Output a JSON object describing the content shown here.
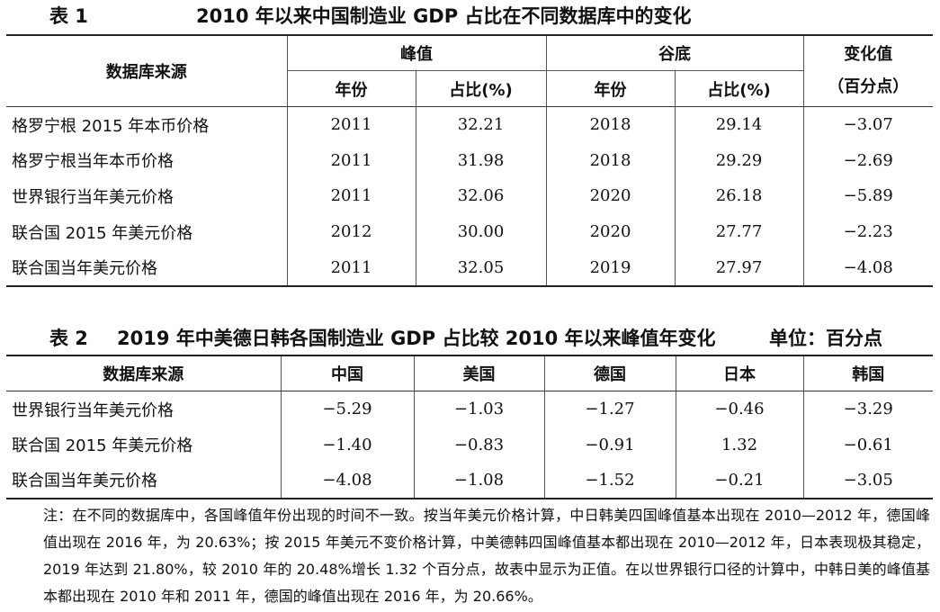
{
  "table1": {
    "num": "表 1",
    "title": "2010 年以来中国制造业 GDP 占比在不同数据库中的变化",
    "headers": {
      "source": "数据库来源",
      "peak": "峰值",
      "trough": "谷底",
      "change_line1": "变化值",
      "change_line2": "（百分点）",
      "year": "年份",
      "share": "占比(%)"
    },
    "rows": [
      {
        "source": "格罗宁根 2015 年本币价格",
        "peak_year": "2011",
        "peak_share": "32.21",
        "trough_year": "2018",
        "trough_share": "29.14",
        "change": "−3.07"
      },
      {
        "source": "格罗宁根当年本币价格",
        "peak_year": "2011",
        "peak_share": "31.98",
        "trough_year": "2018",
        "trough_share": "29.29",
        "change": "−2.69"
      },
      {
        "source": "世界银行当年美元价格",
        "peak_year": "2011",
        "peak_share": "32.06",
        "trough_year": "2020",
        "trough_share": "26.18",
        "change": "−5.89"
      },
      {
        "source": "联合国 2015 年美元价格",
        "peak_year": "2012",
        "peak_share": "30.00",
        "trough_year": "2020",
        "trough_share": "27.77",
        "change": "−2.23"
      },
      {
        "source": "联合国当年美元价格",
        "peak_year": "2011",
        "peak_share": "32.05",
        "trough_year": "2019",
        "trough_share": "27.97",
        "change": "−4.08"
      }
    ]
  },
  "table2": {
    "num": "表 2",
    "title": "2019 年中美德日韩各国制造业 GDP 占比较 2010 年以来峰值年变化",
    "unit": "单位：百分点",
    "headers": [
      "数据库来源",
      "中国",
      "美国",
      "德国",
      "日本",
      "韩国"
    ],
    "rows": [
      {
        "source": "世界银行当年美元价格",
        "values": [
          "−5.29",
          "−1.03",
          "−1.27",
          "−0.46",
          "−3.29"
        ]
      },
      {
        "source": "联合国 2015 年美元价格",
        "values": [
          "−1.40",
          "−0.83",
          "−0.91",
          "1.32",
          "−0.61"
        ]
      },
      {
        "source": "联合国当年美元价格",
        "values": [
          "−4.08",
          "−1.08",
          "−1.52",
          "−0.21",
          "−3.05"
        ]
      }
    ]
  },
  "note": "注：在不同的数据库中，各国峰值年份出现的时间不一致。按当年美元价格计算，中日韩美四国峰值基本出现在 2010—2012 年，德国峰值出现在 2016 年，为 20.63%；按 2015 年美元不变价格计算，中美德韩四国峰值基本都出现在 2010—2012 年，日本表现极其稳定，2019 年达到 21.80%，较 2010 年的 20.48%增长 1.32 个百分点，故表中显示为正值。在以世界银行口径的计算中，中韩日美的峰值基本都出现在 2010 年和 2011 年，德国的峰值出现在 2016 年，为 20.66%。"
}
